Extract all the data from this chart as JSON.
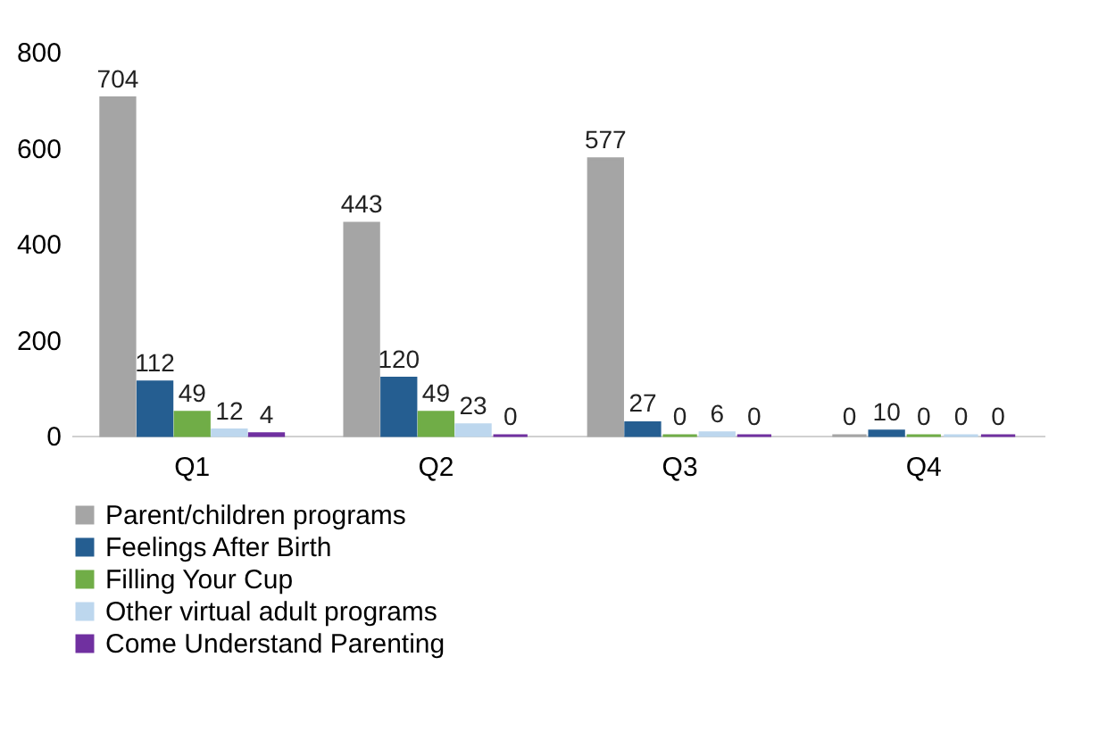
{
  "chart_data": {
    "type": "bar",
    "categories": [
      "Q1",
      "Q2",
      "Q3",
      "Q4"
    ],
    "series": [
      {
        "name": "Parent/children programs",
        "color": "#a5a5a5",
        "values": [
          704,
          443,
          577,
          0
        ]
      },
      {
        "name": "Feelings After Birth",
        "color": "#255e91",
        "values": [
          112,
          120,
          27,
          10
        ]
      },
      {
        "name": "Filling Your Cup",
        "color": "#70ad47",
        "values": [
          49,
          49,
          0,
          0
        ]
      },
      {
        "name": "Other virtual adult programs",
        "color": "#bdd7ee",
        "values": [
          12,
          23,
          6,
          0
        ]
      },
      {
        "name": "Come Understand Parenting",
        "color": "#7030a0",
        "values": [
          4,
          0,
          0,
          0
        ]
      }
    ],
    "ylim": [
      0,
      800
    ],
    "yticks": [
      0,
      200,
      400,
      600,
      800
    ],
    "grid": false,
    "legend": "bottom",
    "data_labels": true
  }
}
